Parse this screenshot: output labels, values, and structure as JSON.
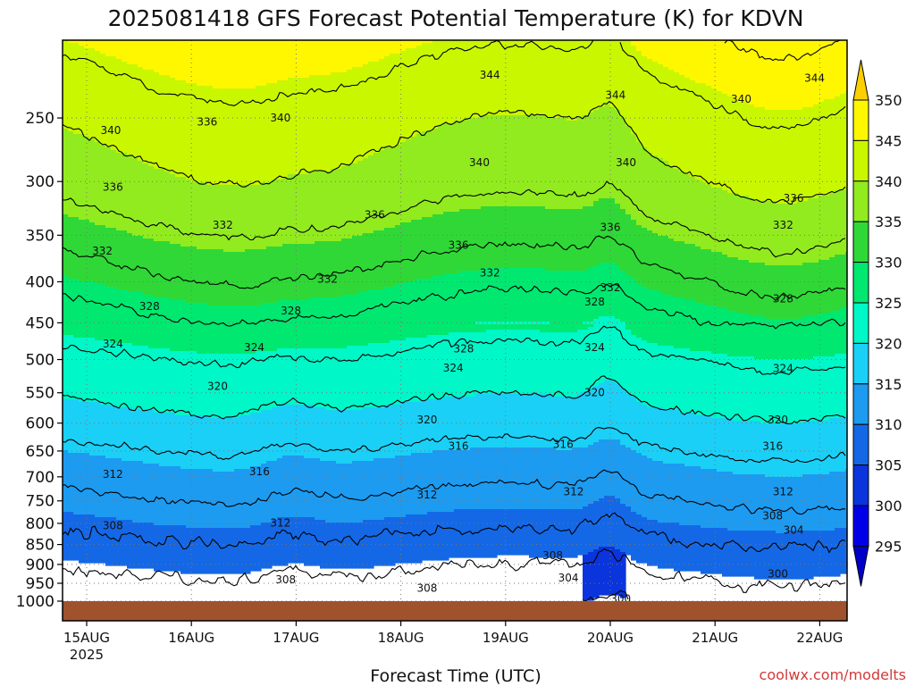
{
  "chart_data": {
    "type": "heatmap",
    "title": "2025081418 GFS Forecast Potential Temperature (K) for KDVN",
    "xlabel": "Forecast Time (UTC)",
    "credit": "coolwx.com/modelts",
    "x_start_year": "2025",
    "x_ticks": [
      "15AUG",
      "16AUG",
      "17AUG",
      "18AUG",
      "19AUG",
      "20AUG",
      "21AUG",
      "22AUG"
    ],
    "y_ticks": [
      250,
      300,
      350,
      400,
      450,
      500,
      550,
      600,
      650,
      700,
      750,
      800,
      850,
      900,
      950,
      1000
    ],
    "ylim": [
      200,
      1000
    ],
    "y_scale": "log",
    "colorbar_ticks": [
      350,
      345,
      340,
      335,
      330,
      325,
      320,
      315,
      310,
      305,
      300,
      295
    ],
    "colorbar_colors": [
      "#fecf00",
      "#fef700",
      "#c9f700",
      "#92eb1e",
      "#2fd836",
      "#00e870",
      "#00f7c8",
      "#1ad0f7",
      "#1c9bf1",
      "#1468e6",
      "#0a34dc",
      "#0000e8",
      "#0000c8"
    ],
    "contour_interval_K": 4,
    "profile_pressure": [
      1000,
      950,
      900,
      850,
      800,
      750,
      700,
      650,
      600,
      550,
      500,
      450,
      400,
      350,
      300,
      250,
      200
    ],
    "profile_theta": [
      301,
      303,
      305,
      307,
      309.5,
      311.5,
      313.5,
      315.5,
      318.5,
      321,
      323.5,
      326.5,
      330.5,
      334.5,
      338.5,
      341.5,
      346
    ],
    "contour_labels": [
      {
        "text": "344",
        "day": 3.85,
        "p": 221
      },
      {
        "text": "344",
        "day": 5.05,
        "p": 234
      },
      {
        "text": "344",
        "day": 6.95,
        "p": 223
      },
      {
        "text": "340",
        "day": 0.23,
        "p": 259
      },
      {
        "text": "336",
        "day": 1.15,
        "p": 253
      },
      {
        "text": "340",
        "day": 1.85,
        "p": 250
      },
      {
        "text": "340",
        "day": 6.25,
        "p": 237
      },
      {
        "text": "340",
        "day": 3.75,
        "p": 284
      },
      {
        "text": "340",
        "day": 5.15,
        "p": 284
      },
      {
        "text": "336",
        "day": 0.25,
        "p": 305
      },
      {
        "text": "336",
        "day": 2.75,
        "p": 330
      },
      {
        "text": "336",
        "day": 3.55,
        "p": 360
      },
      {
        "text": "336",
        "day": 5.0,
        "p": 342
      },
      {
        "text": "336",
        "day": 6.75,
        "p": 315
      },
      {
        "text": "332",
        "day": 1.3,
        "p": 340
      },
      {
        "text": "332",
        "day": 0.15,
        "p": 366
      },
      {
        "text": "332",
        "day": 2.3,
        "p": 397
      },
      {
        "text": "332",
        "day": 3.85,
        "p": 390
      },
      {
        "text": "332",
        "day": 5.0,
        "p": 407
      },
      {
        "text": "332",
        "day": 6.65,
        "p": 340
      },
      {
        "text": "328",
        "day": 0.6,
        "p": 429
      },
      {
        "text": "328",
        "day": 1.95,
        "p": 435
      },
      {
        "text": "328",
        "day": 3.6,
        "p": 485
      },
      {
        "text": "328",
        "day": 4.85,
        "p": 424
      },
      {
        "text": "328",
        "day": 6.65,
        "p": 420
      },
      {
        "text": "324",
        "day": 0.25,
        "p": 478
      },
      {
        "text": "324",
        "day": 1.6,
        "p": 483
      },
      {
        "text": "324",
        "day": 3.5,
        "p": 512
      },
      {
        "text": "324",
        "day": 4.85,
        "p": 483
      },
      {
        "text": "324",
        "day": 6.65,
        "p": 513
      },
      {
        "text": "320",
        "day": 1.25,
        "p": 540
      },
      {
        "text": "320",
        "day": 3.25,
        "p": 594
      },
      {
        "text": "320",
        "day": 4.85,
        "p": 550
      },
      {
        "text": "320",
        "day": 6.6,
        "p": 594
      },
      {
        "text": "316",
        "day": 1.65,
        "p": 690
      },
      {
        "text": "316",
        "day": 3.55,
        "p": 641
      },
      {
        "text": "316",
        "day": 4.55,
        "p": 638
      },
      {
        "text": "316",
        "day": 6.55,
        "p": 641
      },
      {
        "text": "312",
        "day": 0.25,
        "p": 695
      },
      {
        "text": "312",
        "day": 3.25,
        "p": 737
      },
      {
        "text": "312",
        "day": 4.65,
        "p": 731
      },
      {
        "text": "312",
        "day": 6.65,
        "p": 731
      },
      {
        "text": "312",
        "day": 1.85,
        "p": 799
      },
      {
        "text": "308",
        "day": 0.25,
        "p": 805
      },
      {
        "text": "308",
        "day": 6.55,
        "p": 783
      },
      {
        "text": "308",
        "day": 4.45,
        "p": 878
      },
      {
        "text": "308",
        "day": 3.25,
        "p": 963
      },
      {
        "text": "308",
        "day": 1.9,
        "p": 940
      },
      {
        "text": "304",
        "day": 6.75,
        "p": 816
      },
      {
        "text": "304",
        "day": 4.6,
        "p": 935
      },
      {
        "text": "300",
        "day": 6.6,
        "p": 925
      },
      {
        "text": "300",
        "day": 5.1,
        "p": 993
      }
    ]
  }
}
